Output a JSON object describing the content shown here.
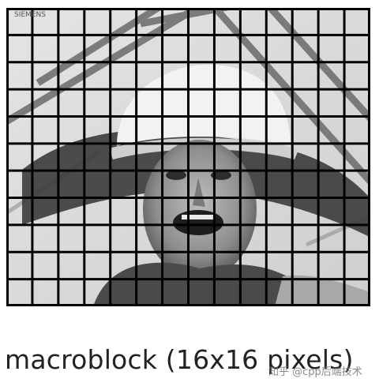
{
  "figure": {
    "stamp_text": "SIEMENS",
    "caption": "macroblock (16x16 pixels)",
    "watermark": "知乎 @cpp后端技术",
    "grid": {
      "columns": 14,
      "rows": 11
    }
  }
}
